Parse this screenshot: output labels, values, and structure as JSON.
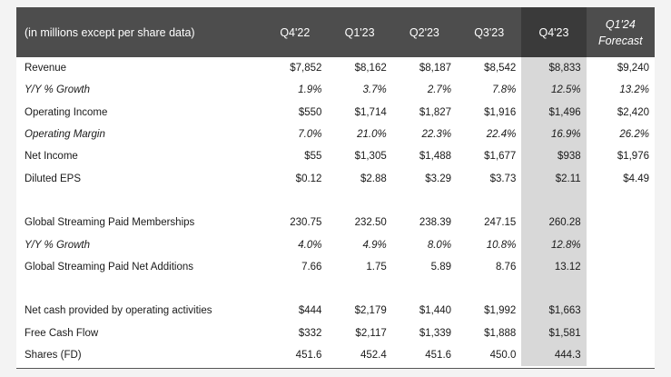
{
  "table": {
    "header": {
      "label": "(in millions except per share data)",
      "columns": [
        "Q4'22",
        "Q1'23",
        "Q2'23",
        "Q3'23",
        "Q4'23"
      ],
      "forecast_line1": "Q1'24",
      "forecast_line2": "Forecast"
    },
    "rows": [
      {
        "label": "Revenue",
        "italic": false,
        "values": [
          "$7,852",
          "$8,162",
          "$8,187",
          "$8,542",
          "$8,833",
          "$9,240"
        ]
      },
      {
        "label": "Y/Y % Growth",
        "italic": true,
        "values": [
          "1.9%",
          "3.7%",
          "2.7%",
          "7.8%",
          "12.5%",
          "13.2%"
        ]
      },
      {
        "label": "Operating Income",
        "italic": false,
        "values": [
          "$550",
          "$1,714",
          "$1,827",
          "$1,916",
          "$1,496",
          "$2,420"
        ]
      },
      {
        "label": "Operating Margin",
        "italic": true,
        "values": [
          "7.0%",
          "21.0%",
          "22.3%",
          "22.4%",
          "16.9%",
          "26.2%"
        ]
      },
      {
        "label": "Net Income",
        "italic": false,
        "values": [
          "$55",
          "$1,305",
          "$1,488",
          "$1,677",
          "$938",
          "$1,976"
        ]
      },
      {
        "label": "Diluted EPS",
        "italic": false,
        "values": [
          "$0.12",
          "$2.88",
          "$3.29",
          "$3.73",
          "$2.11",
          "$4.49"
        ]
      },
      {
        "label": "Global Streaming Paid Memberships",
        "italic": false,
        "values": [
          "230.75",
          "232.50",
          "238.39",
          "247.15",
          "260.28",
          ""
        ]
      },
      {
        "label": "Y/Y % Growth",
        "italic": true,
        "values": [
          "4.0%",
          "4.9%",
          "8.0%",
          "10.8%",
          "12.8%",
          ""
        ]
      },
      {
        "label": "Global Streaming Paid Net Additions",
        "italic": false,
        "values": [
          "7.66",
          "1.75",
          "5.89",
          "8.76",
          "13.12",
          ""
        ]
      },
      {
        "label": "Net cash provided by operating activities",
        "italic": false,
        "values": [
          "$444",
          "$2,179",
          "$1,440",
          "$1,992",
          "$1,663",
          ""
        ]
      },
      {
        "label": "Free Cash Flow",
        "italic": false,
        "values": [
          "$332",
          "$2,117",
          "$1,339",
          "$1,888",
          "$1,581",
          ""
        ]
      },
      {
        "label": "Shares (FD)",
        "italic": false,
        "values": [
          "451.6",
          "452.4",
          "451.6",
          "450.0",
          "444.3",
          ""
        ]
      }
    ]
  },
  "colors": {
    "header_bg": "#4d4d4d",
    "header_shaded_bg": "#3a3a3a",
    "column_shade": "#d8d8d8"
  }
}
